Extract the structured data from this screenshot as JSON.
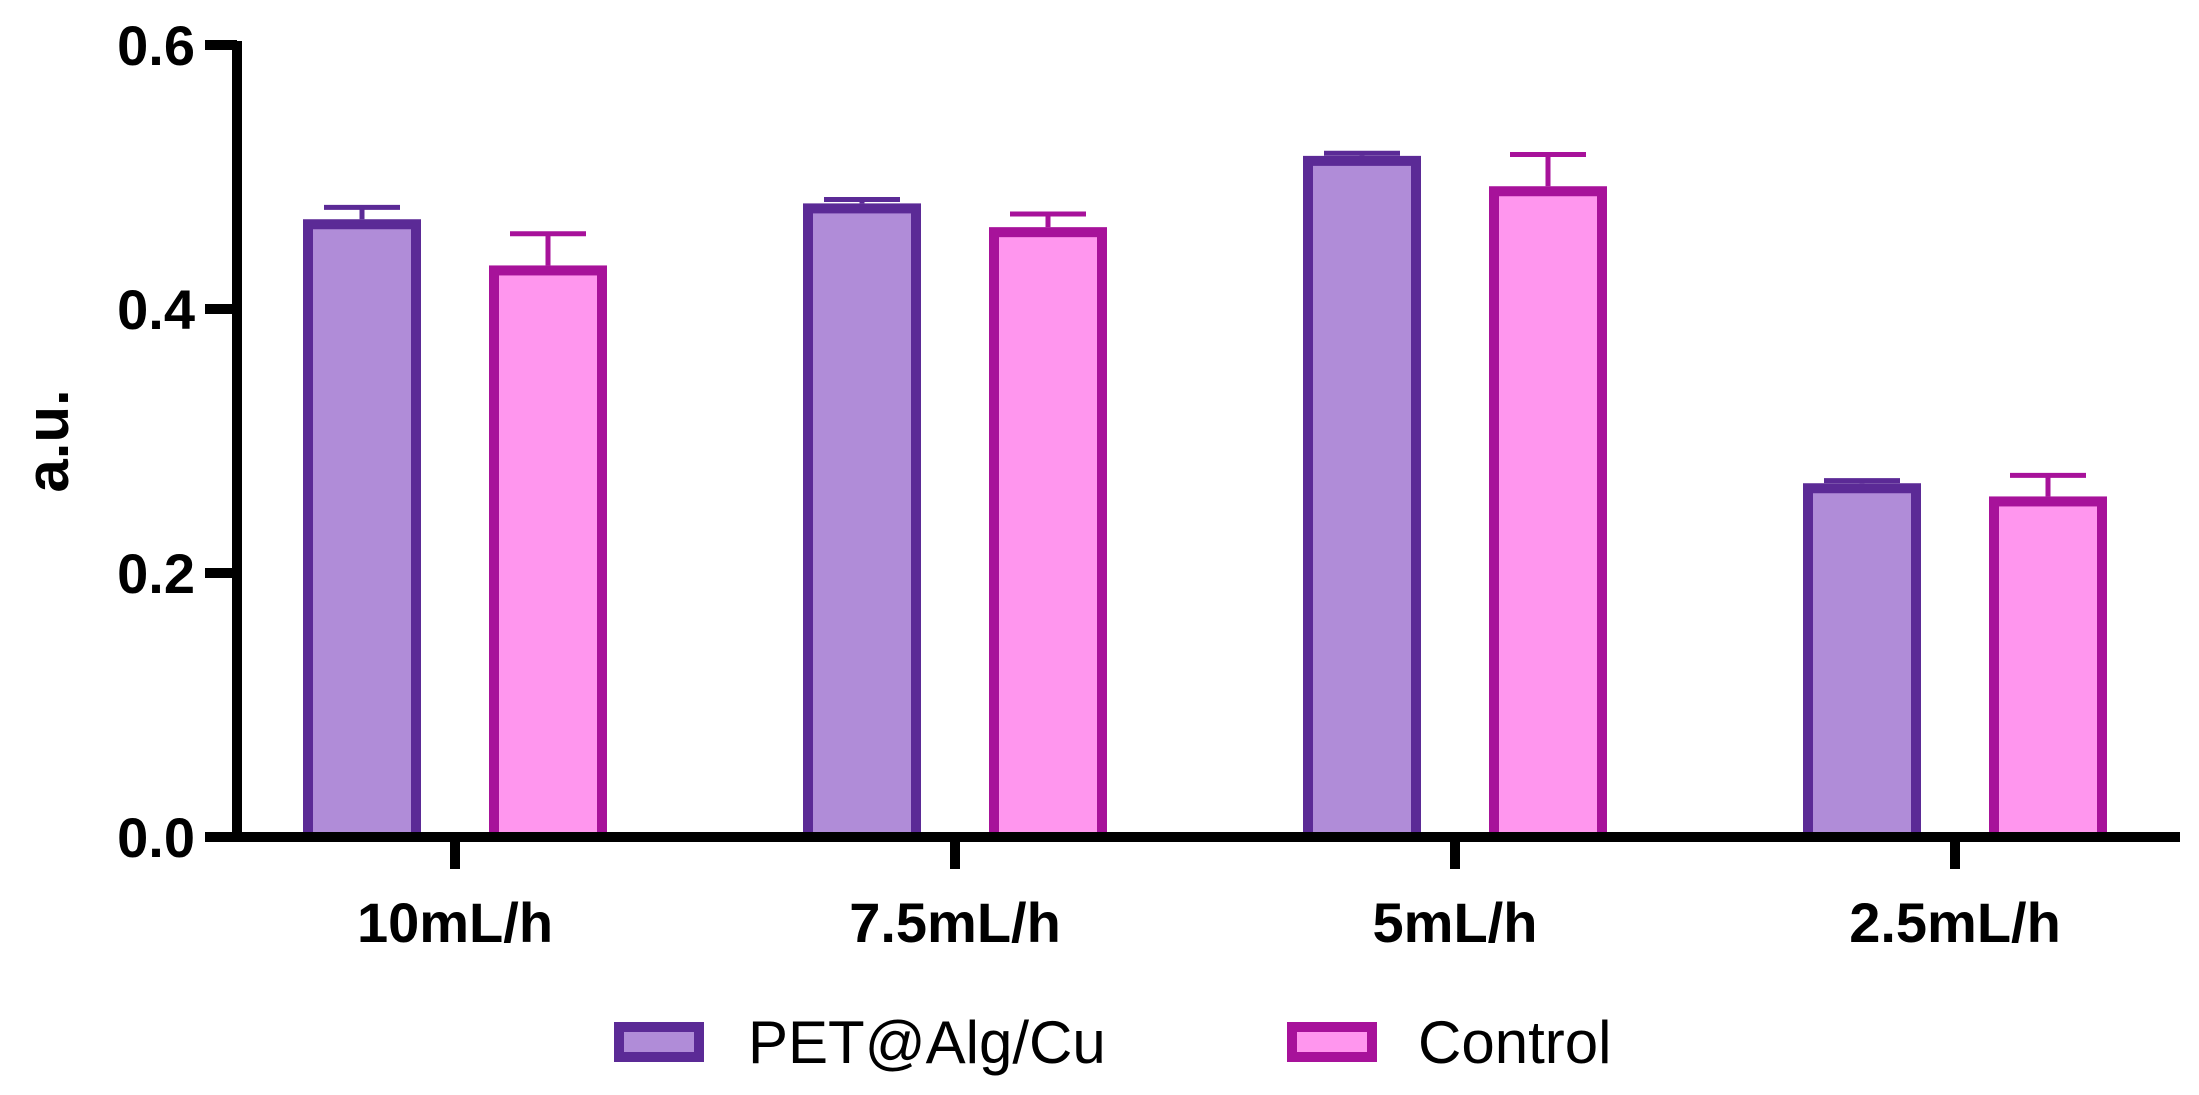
{
  "chart_data": {
    "type": "bar",
    "title": "",
    "xlabel": "",
    "ylabel": "a.u.",
    "ylim": [
      0,
      0.6
    ],
    "yticks": [
      "0.0",
      "0.2",
      "0.4",
      "0.6"
    ],
    "ytick_values": [
      0.0,
      0.2,
      0.4,
      0.6
    ],
    "categories": [
      "10mL/h",
      "7.5mL/h",
      "5mL/h",
      "2.5mL/h"
    ],
    "series": [
      {
        "name": "PET@Alg/Cu",
        "values": [
          0.468,
          0.48,
          0.516,
          0.268
        ],
        "errors": [
          0.009,
          0.003,
          0.002,
          0.002
        ],
        "fill": "#B08CD8",
        "stroke": "#5B2A96"
      },
      {
        "name": "Control",
        "values": [
          0.433,
          0.462,
          0.493,
          0.258
        ],
        "errors": [
          0.024,
          0.01,
          0.024,
          0.016
        ],
        "fill": "#FF96EE",
        "stroke": "#A7129A"
      }
    ],
    "legend_position": "bottom",
    "grid": false
  }
}
